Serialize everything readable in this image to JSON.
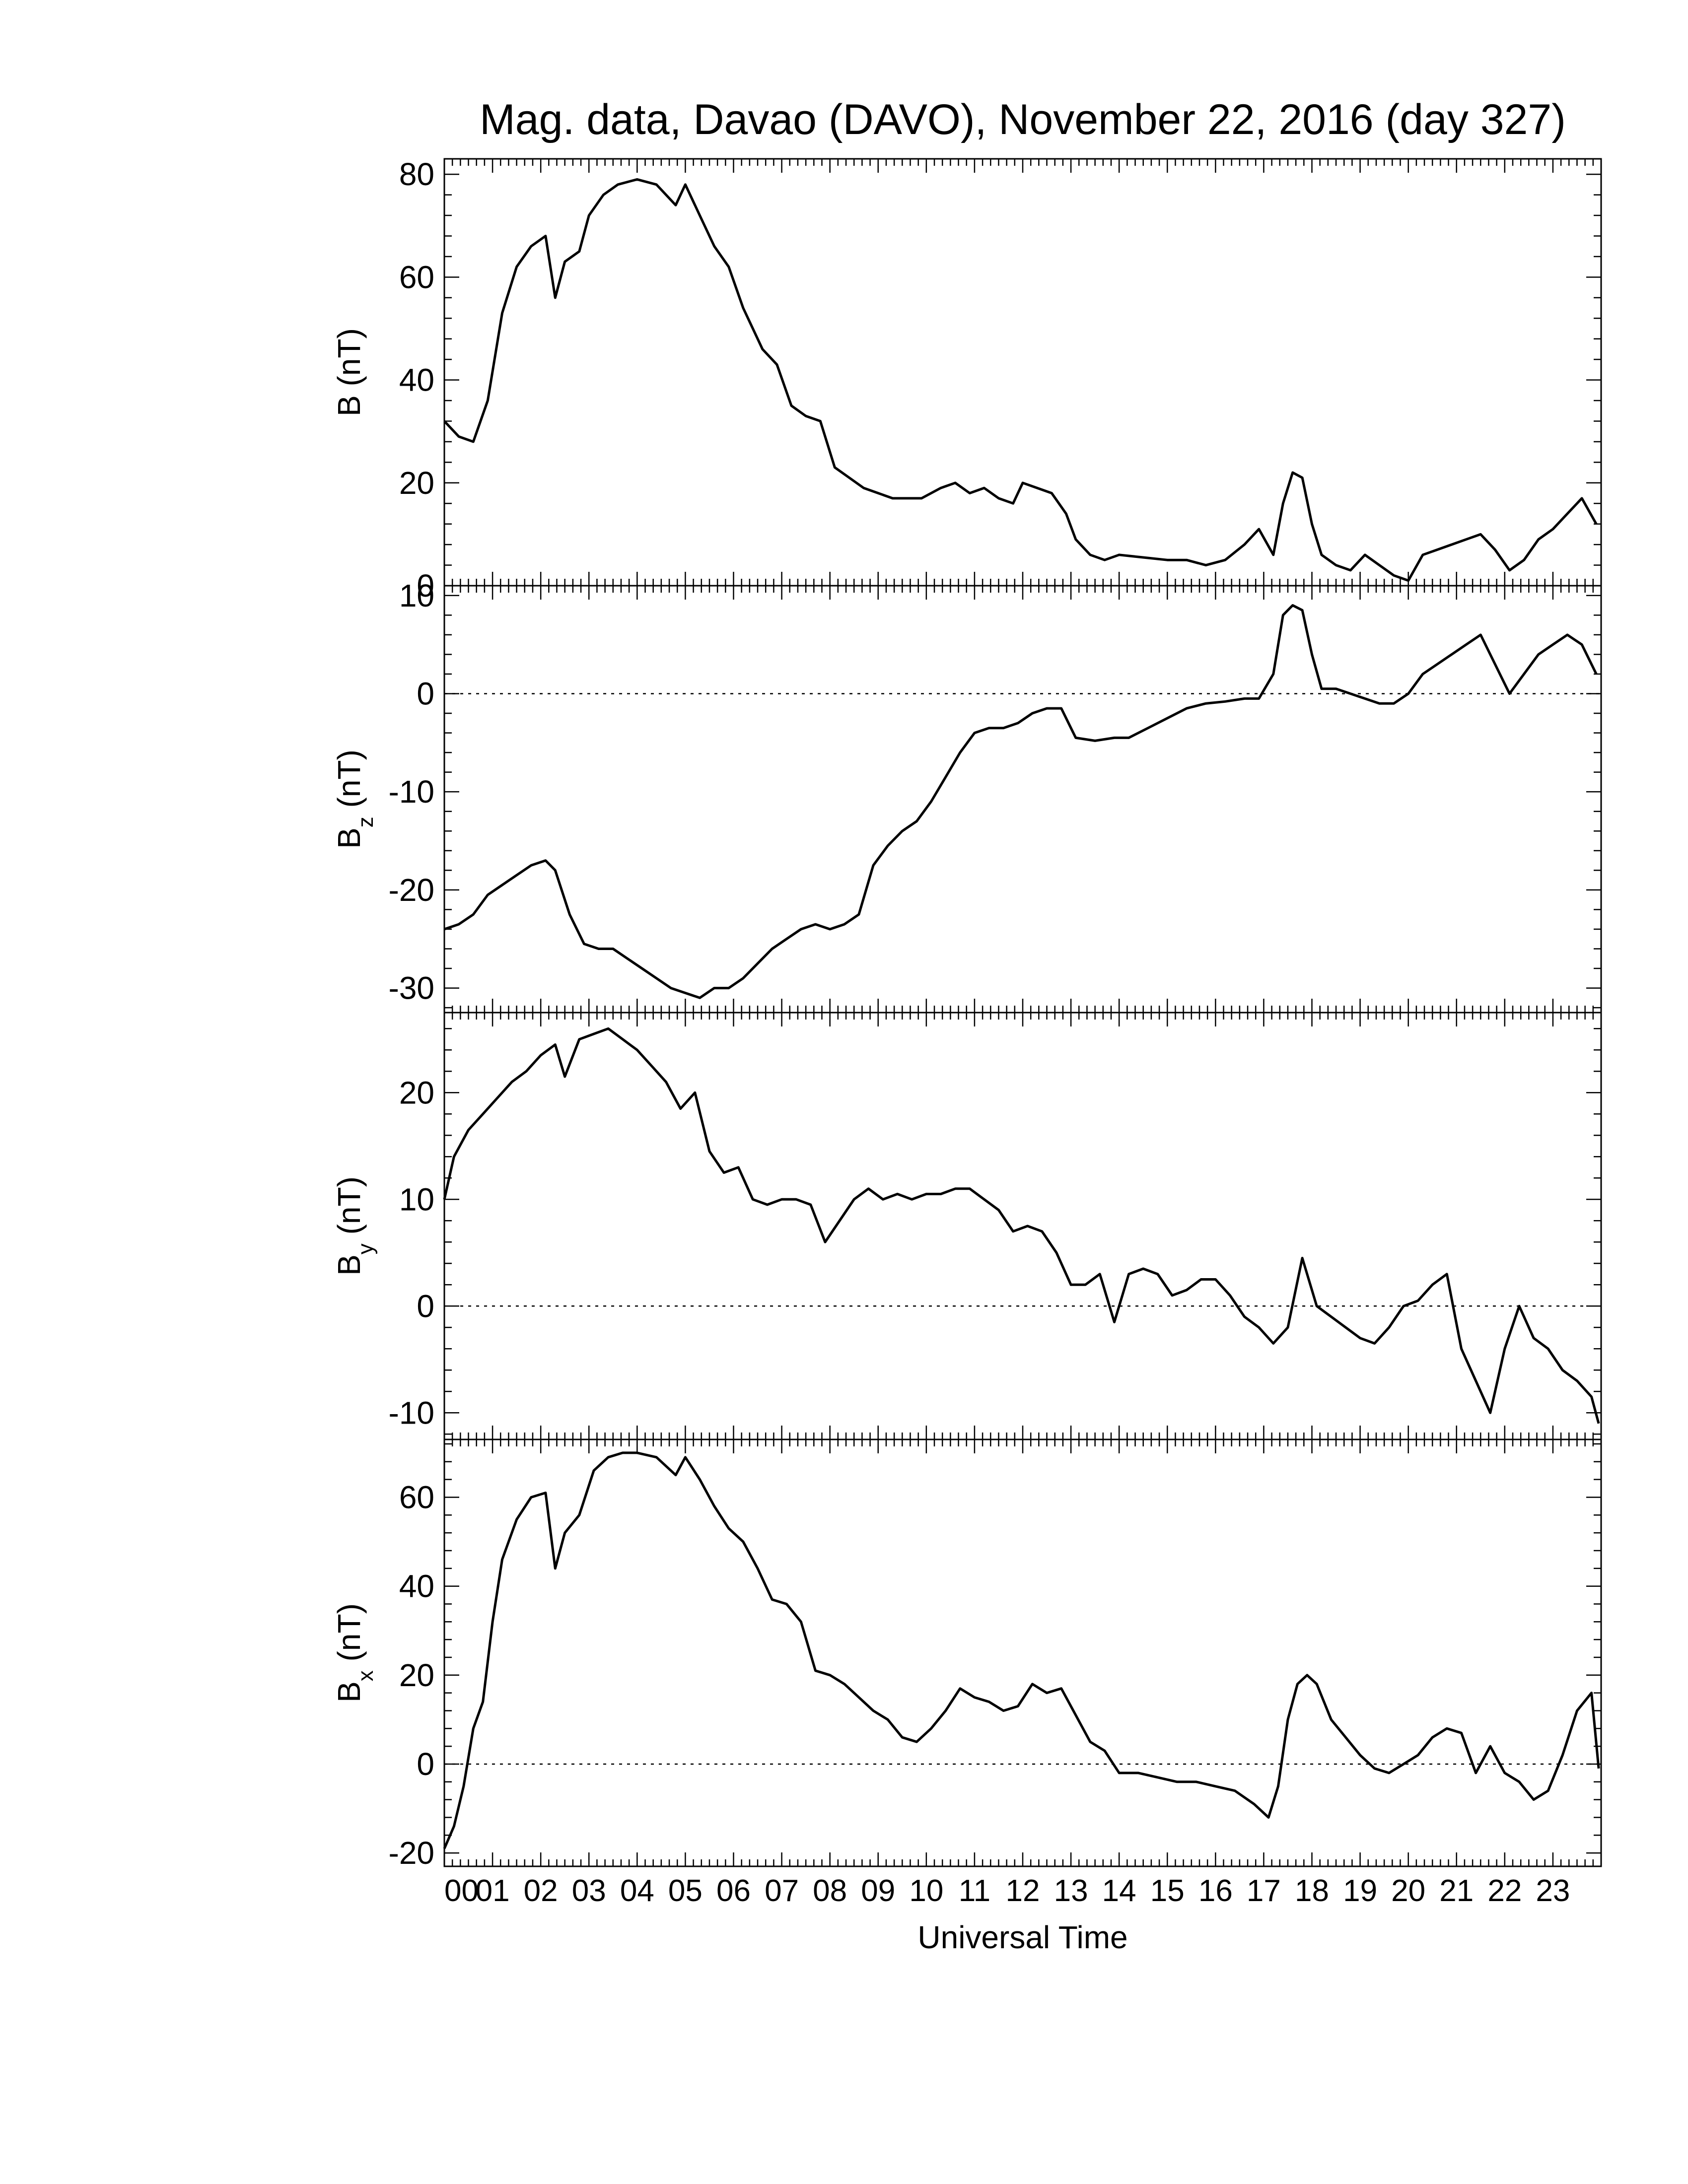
{
  "title": "Mag. data, Davao (DAVO), November 22, 2016 (day 327)",
  "xlabel": "Universal Time",
  "x_ticks": [
    "00",
    "01",
    "02",
    "03",
    "04",
    "05",
    "06",
    "07",
    "08",
    "09",
    "10",
    "11",
    "12",
    "13",
    "14",
    "15",
    "16",
    "17",
    "18",
    "19",
    "20",
    "21",
    "22",
    "23"
  ],
  "chart_data": [
    {
      "type": "line",
      "panel": "B",
      "ylabel_main": "B",
      "ylabel_sub": "",
      "ylabel_unit": "(nT)",
      "ylim": [
        0,
        83
      ],
      "yticks": [
        0,
        20,
        40,
        60,
        80
      ],
      "zero_line": true,
      "x": [
        0,
        0.3,
        0.6,
        0.9,
        1.2,
        1.5,
        1.8,
        2.1,
        2.3,
        2.5,
        2.8,
        3.0,
        3.3,
        3.6,
        4.0,
        4.4,
        4.8,
        5.0,
        5.3,
        5.6,
        5.9,
        6.2,
        6.6,
        6.9,
        7.2,
        7.5,
        7.8,
        8.1,
        8.4,
        8.7,
        9.0,
        9.3,
        9.6,
        9.9,
        10.3,
        10.6,
        10.9,
        11.2,
        11.5,
        11.8,
        12.0,
        12.3,
        12.6,
        12.9,
        13.1,
        13.4,
        13.7,
        14.0,
        14.5,
        15.0,
        15.4,
        15.8,
        16.2,
        16.6,
        16.9,
        17.2,
        17.4,
        17.6,
        17.8,
        18.0,
        18.2,
        18.5,
        18.8,
        19.1,
        19.4,
        19.7,
        20.0,
        20.3,
        20.6,
        20.9,
        21.2,
        21.5,
        21.8,
        22.1,
        22.4,
        22.7,
        23.0,
        23.3,
        23.6,
        23.9
      ],
      "y": [
        32,
        29,
        28,
        36,
        53,
        62,
        66,
        68,
        56,
        63,
        65,
        72,
        76,
        78,
        79,
        78,
        74,
        78,
        72,
        66,
        62,
        54,
        46,
        43,
        35,
        33,
        32,
        23,
        21,
        19,
        18,
        17,
        17,
        17,
        19,
        20,
        18,
        19,
        17,
        16,
        20,
        19,
        18,
        14,
        9,
        6,
        5,
        6,
        5.5,
        5,
        5,
        4,
        5,
        8,
        11,
        6,
        16,
        22,
        21,
        12,
        6,
        4,
        3,
        6,
        4,
        2,
        1,
        6,
        7,
        8,
        9,
        10,
        7,
        3,
        5,
        9,
        11,
        14,
        17,
        12
      ]
    },
    {
      "type": "line",
      "panel": "Bz",
      "ylabel_main": "B",
      "ylabel_sub": "z",
      "ylabel_unit": "(nT)",
      "ylim": [
        -32.5,
        11
      ],
      "yticks": [
        -30,
        -20,
        -10,
        0,
        10
      ],
      "zero_line": true,
      "x": [
        0,
        0.3,
        0.6,
        0.9,
        1.2,
        1.5,
        1.8,
        2.1,
        2.3,
        2.6,
        2.9,
        3.2,
        3.5,
        3.8,
        4.1,
        4.4,
        4.7,
        5.0,
        5.3,
        5.6,
        5.9,
        6.2,
        6.5,
        6.8,
        7.1,
        7.4,
        7.7,
        8.0,
        8.3,
        8.6,
        8.9,
        9.2,
        9.5,
        9.8,
        10.1,
        10.4,
        10.7,
        11.0,
        11.3,
        11.6,
        11.9,
        12.2,
        12.5,
        12.8,
        13.1,
        13.5,
        13.9,
        14.2,
        14.6,
        15.0,
        15.4,
        15.8,
        16.2,
        16.6,
        16.9,
        17.2,
        17.4,
        17.6,
        17.8,
        18.0,
        18.2,
        18.5,
        18.8,
        19.1,
        19.4,
        19.7,
        20.0,
        20.3,
        20.6,
        20.9,
        21.2,
        21.5,
        21.8,
        22.1,
        22.4,
        22.7,
        23.0,
        23.3,
        23.6,
        23.9
      ],
      "y": [
        -24,
        -23.5,
        -22.5,
        -20.5,
        -19.5,
        -18.5,
        -17.5,
        -17,
        -18,
        -22.5,
        -25.5,
        -26,
        -26,
        -27,
        -28,
        -29,
        -30,
        -30.5,
        -31,
        -30,
        -30,
        -29,
        -27.5,
        -26,
        -25,
        -24,
        -23.5,
        -24,
        -23.5,
        -22.5,
        -17.5,
        -15.5,
        -14,
        -13,
        -11,
        -8.5,
        -6,
        -4,
        -3.5,
        -3.5,
        -3,
        -2,
        -1.5,
        -1.5,
        -4.5,
        -4.8,
        -4.5,
        -4.5,
        -3.5,
        -2.5,
        -1.5,
        -1,
        -0.8,
        -0.5,
        -0.5,
        2,
        8,
        9,
        8.5,
        4,
        0.5,
        0.5,
        0,
        -0.5,
        -1,
        -1,
        0,
        2,
        3,
        4,
        5,
        6,
        3,
        0,
        2,
        4,
        5,
        6,
        5,
        2
      ]
    },
    {
      "type": "line",
      "panel": "By",
      "ylabel_main": "B",
      "ylabel_sub": "y",
      "ylabel_unit": "(nT)",
      "ylim": [
        -12.5,
        27.5
      ],
      "yticks": [
        -10,
        0,
        10,
        20
      ],
      "zero_line": true,
      "x": [
        0,
        0.2,
        0.5,
        0.8,
        1.1,
        1.4,
        1.7,
        2.0,
        2.3,
        2.5,
        2.8,
        3.1,
        3.4,
        3.7,
        4.0,
        4.3,
        4.6,
        4.9,
        5.2,
        5.5,
        5.8,
        6.1,
        6.4,
        6.7,
        7.0,
        7.3,
        7.6,
        7.9,
        8.2,
        8.5,
        8.8,
        9.1,
        9.4,
        9.7,
        10.0,
        10.3,
        10.6,
        10.9,
        11.2,
        11.5,
        11.8,
        12.1,
        12.4,
        12.7,
        13.0,
        13.3,
        13.6,
        13.9,
        14.2,
        14.5,
        14.8,
        15.1,
        15.4,
        15.7,
        16.0,
        16.3,
        16.6,
        16.9,
        17.2,
        17.5,
        17.8,
        18.1,
        18.4,
        18.7,
        19.0,
        19.3,
        19.6,
        19.9,
        20.2,
        20.5,
        20.8,
        21.1,
        21.4,
        21.7,
        22.0,
        22.3,
        22.6,
        22.9,
        23.2,
        23.5,
        23.8,
        23.95
      ],
      "y": [
        10,
        14,
        16.5,
        18,
        19.5,
        21,
        22,
        23.5,
        24.5,
        21.5,
        25,
        25.5,
        26,
        25,
        24,
        22.5,
        21,
        18.5,
        20,
        14.5,
        12.5,
        13,
        10,
        9.5,
        10,
        10,
        9.5,
        6,
        8,
        10,
        11,
        10,
        10.5,
        10,
        10.5,
        10.5,
        11,
        11,
        10,
        9,
        7,
        7.5,
        7,
        5,
        2,
        2,
        3,
        -1.5,
        3,
        3.5,
        3,
        1,
        1.5,
        2.5,
        2.5,
        1,
        -1,
        -2,
        -3.5,
        -2,
        4.5,
        0,
        -1,
        -2,
        -3,
        -3.5,
        -2,
        0,
        0.5,
        2,
        3,
        -4,
        -7,
        -10,
        -4,
        0,
        -3,
        -4,
        -6,
        -7,
        -8.5,
        -11
      ]
    },
    {
      "type": "line",
      "panel": "Bx",
      "ylabel_main": "B",
      "ylabel_sub": "x",
      "ylabel_unit": "(nT)",
      "ylim": [
        -23,
        73
      ],
      "yticks": [
        -20,
        0,
        20,
        40,
        60
      ],
      "zero_line": true,
      "x": [
        0,
        0.2,
        0.4,
        0.6,
        0.8,
        1.0,
        1.2,
        1.5,
        1.8,
        2.1,
        2.3,
        2.5,
        2.8,
        3.1,
        3.4,
        3.7,
        4.0,
        4.4,
        4.8,
        5.0,
        5.3,
        5.6,
        5.9,
        6.2,
        6.5,
        6.8,
        7.1,
        7.4,
        7.7,
        8.0,
        8.3,
        8.6,
        8.9,
        9.2,
        9.5,
        9.8,
        10.1,
        10.4,
        10.7,
        11.0,
        11.3,
        11.6,
        11.9,
        12.2,
        12.5,
        12.8,
        13.1,
        13.4,
        13.7,
        14.0,
        14.4,
        14.8,
        15.2,
        15.6,
        16.0,
        16.4,
        16.8,
        17.1,
        17.3,
        17.5,
        17.7,
        17.9,
        18.1,
        18.4,
        18.7,
        19.0,
        19.3,
        19.6,
        19.9,
        20.2,
        20.5,
        20.8,
        21.1,
        21.4,
        21.7,
        22.0,
        22.3,
        22.6,
        22.9,
        23.2,
        23.5,
        23.8,
        23.95
      ],
      "y": [
        -19,
        -14,
        -5,
        8,
        14,
        32,
        46,
        55,
        60,
        61,
        44,
        52,
        56,
        66,
        69,
        70,
        70,
        69,
        65,
        69,
        64,
        58,
        53,
        50,
        44,
        37,
        36,
        32,
        21,
        20,
        18,
        15,
        12,
        10,
        6,
        5,
        8,
        12,
        17,
        15,
        14,
        12,
        13,
        18,
        16,
        17,
        11,
        5,
        3,
        -2,
        -2,
        -3,
        -4,
        -4,
        -5,
        -6,
        -9,
        -12,
        -5,
        10,
        18,
        20,
        18,
        10,
        6,
        2,
        -1,
        -2,
        0,
        2,
        6,
        8,
        7,
        -2,
        4,
        -2,
        -4,
        -8,
        -6,
        2,
        12,
        16,
        -1
      ]
    }
  ]
}
